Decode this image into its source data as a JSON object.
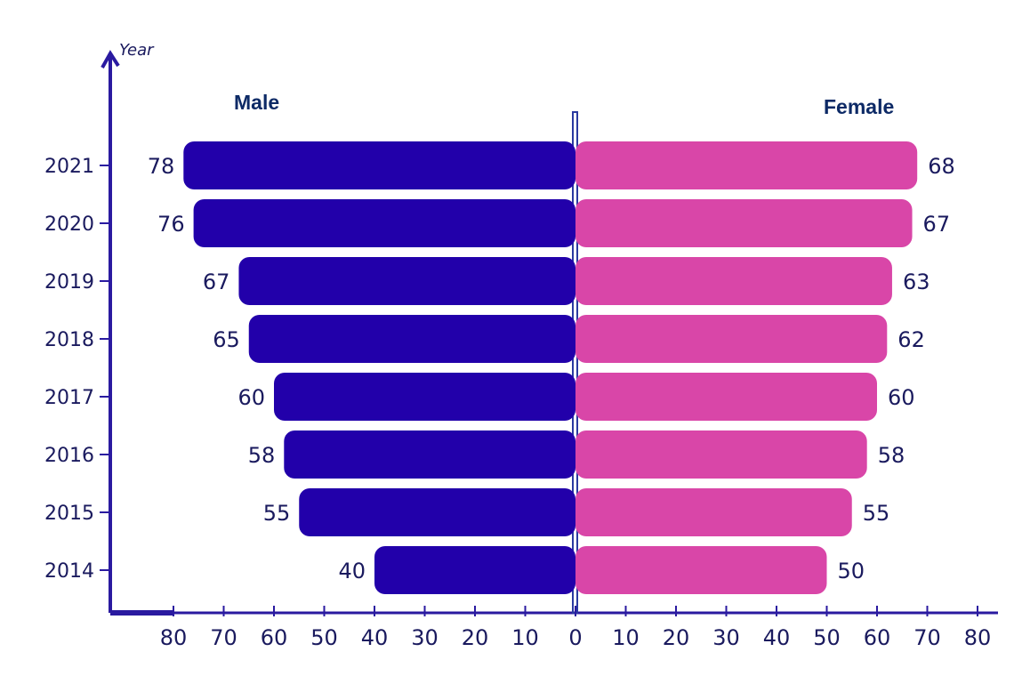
{
  "chart_data": {
    "type": "bar",
    "orientation": "horizontal-butterfly",
    "ylabel": "Year",
    "categories": [
      "2021",
      "2020",
      "2019",
      "2018",
      "2017",
      "2016",
      "2015",
      "2014"
    ],
    "series": [
      {
        "name": "Male",
        "side": "left",
        "color": "#2200aa",
        "values": [
          78,
          76,
          67,
          65,
          60,
          58,
          55,
          40
        ]
      },
      {
        "name": "Female",
        "side": "right",
        "color": "#d946a8",
        "values": [
          68,
          67,
          63,
          62,
          60,
          58,
          55,
          50
        ]
      }
    ],
    "x_ticks_left": [
      "80",
      "70",
      "60",
      "50",
      "40",
      "30",
      "20",
      "10"
    ],
    "x_tick_center": "0",
    "x_ticks_right": [
      "10",
      "20",
      "30",
      "40",
      "50",
      "60",
      "70",
      "80"
    ],
    "xlim": [
      0,
      80
    ],
    "data_labels": true,
    "grid": false,
    "legend_placement": "top",
    "axis_color": "#2a1aa0"
  }
}
